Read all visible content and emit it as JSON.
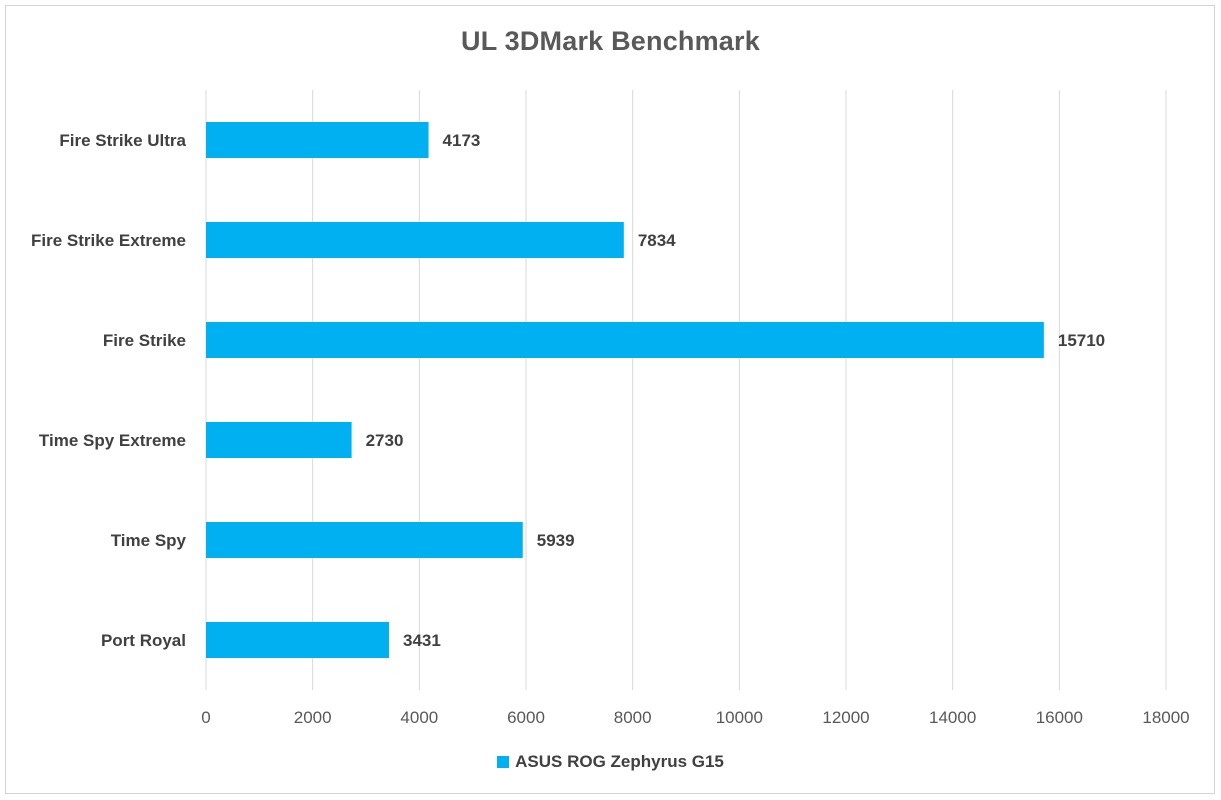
{
  "chart_data": {
    "type": "bar",
    "orientation": "horizontal",
    "title": "UL 3DMark Benchmark",
    "categories": [
      "Fire Strike Ultra",
      "Fire Strike Extreme",
      "Fire Strike",
      "Time Spy Extreme",
      "Time Spy",
      "Port Royal"
    ],
    "series": [
      {
        "name": "ASUS ROG Zephyrus G15",
        "color": "#00B0F0",
        "values": [
          4173,
          7834,
          15710,
          2730,
          5939,
          3431
        ]
      }
    ],
    "xlim": [
      0,
      18000
    ],
    "xticks": [
      0,
      2000,
      4000,
      6000,
      8000,
      10000,
      12000,
      14000,
      16000,
      18000
    ],
    "grid": true,
    "data_labels": true,
    "legend_position": "bottom"
  }
}
